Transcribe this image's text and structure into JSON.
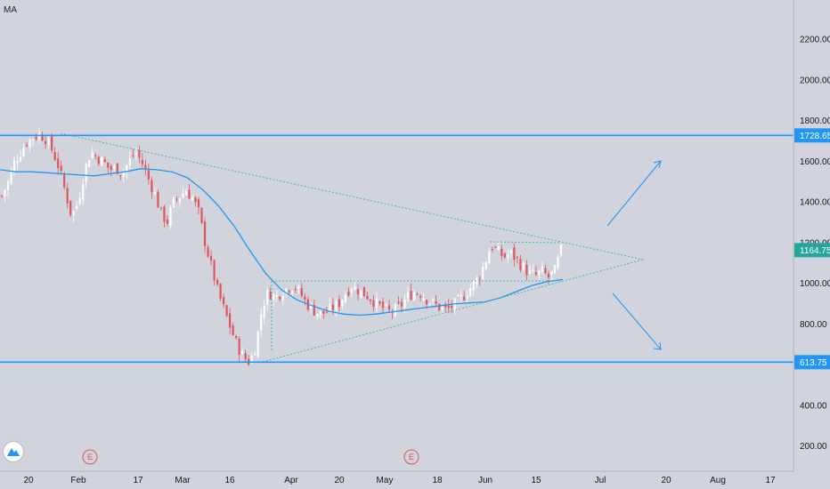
{
  "indicator_label": "MA",
  "logo_icon": "tradingview-logo-icon",
  "colors": {
    "background": "#d1d4dc",
    "up_candle": "#ffffff",
    "down_candle": "#e0555a",
    "ma_line": "#2196f3",
    "level_line": "#2196f3",
    "trendline": "#4db6ac",
    "arrow": "#2196f3",
    "last_price_tag": "#26a69a",
    "event_marker": "#e0555a"
  },
  "chart_data": {
    "type": "candlestick",
    "y_scale": "linear",
    "ylim": [
      100,
      2380
    ],
    "y_ticks": [
      "200.00",
      "400.00",
      "600.00",
      "800.00",
      "1000.00",
      "1200.00",
      "1400.00",
      "1600.00",
      "1800.00",
      "2000.00",
      "2200.00"
    ],
    "x_ticks": [
      "20",
      "Feb",
      "17",
      "Mar",
      "16",
      "Apr",
      "20",
      "May",
      "18",
      "Jun",
      "15",
      "Jul",
      "20",
      "Aug",
      "17"
    ],
    "grid": false,
    "levels": [
      {
        "label": "1728.65",
        "value": 1728.65
      },
      {
        "label": "613.75",
        "value": 613.75
      }
    ],
    "last_price": {
      "label": "1164.75",
      "value": 1164.75
    },
    "event_markers": [
      "E",
      "E"
    ],
    "price_path": [
      1430,
      1500,
      1600,
      1650,
      1700,
      1720,
      1735,
      1710,
      1650,
      1570,
      1450,
      1330,
      1400,
      1550,
      1650,
      1620,
      1600,
      1560,
      1570,
      1540,
      1600,
      1650,
      1600,
      1520,
      1450,
      1350,
      1300,
      1400,
      1430,
      1460,
      1420,
      1350,
      1200,
      1080,
      960,
      870,
      780,
      700,
      640,
      613.75,
      700,
      890,
      960,
      930,
      960,
      980,
      990,
      950,
      900,
      870,
      850,
      860,
      880,
      900,
      950,
      990,
      970,
      950,
      930,
      900,
      880,
      860,
      870,
      900,
      940,
      960,
      950,
      920,
      900,
      880,
      870,
      890,
      920,
      950,
      990,
      1030,
      1100,
      1190,
      1160,
      1130,
      1150,
      1120,
      1080,
      1050,
      1040,
      1060,
      1030,
      1060,
      1164.75
    ],
    "ma_path": [
      1560,
      1550,
      1550,
      1545,
      1540,
      1535,
      1530,
      1540,
      1550,
      1565,
      1560,
      1550,
      1520,
      1460,
      1380,
      1280,
      1160,
      1050,
      970,
      920,
      890,
      865,
      850,
      845,
      850,
      860,
      870,
      880,
      890,
      900,
      905,
      910,
      930,
      960,
      990,
      1010,
      1020
    ]
  }
}
